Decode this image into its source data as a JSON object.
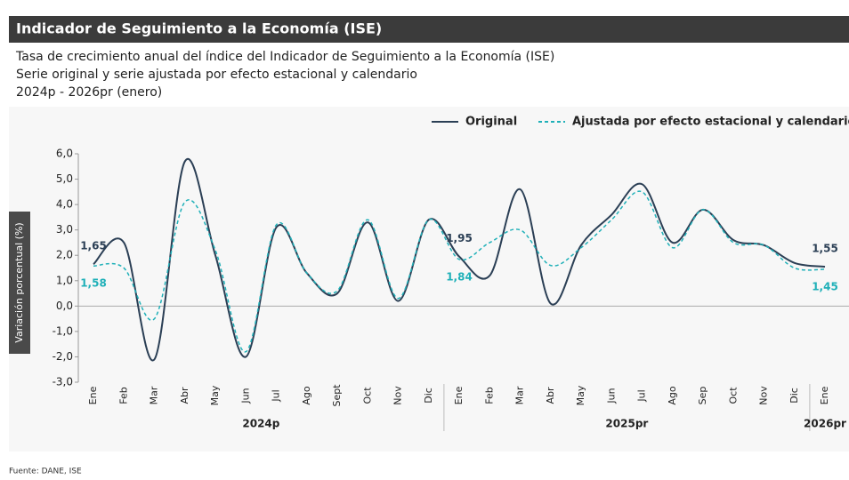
{
  "chart_data": {
    "type": "line",
    "title": "Indicador de Seguimiento a la Economía (ISE)",
    "subtitle": [
      "Tasa de crecimiento anual del índice del Indicador de Seguimiento a la Economía (ISE)",
      "Serie original y serie ajustada por efecto estacional y calendario",
      "2024p - 2026pr (enero)"
    ],
    "ylabel": "Variación porcentual (%)",
    "source": "Fuente: DANE, ISE",
    "categories": [
      "Ene",
      "Feb",
      "Mar",
      "Abr",
      "May",
      "Jun",
      "Jul",
      "Ago",
      "Sept",
      "Oct",
      "Nov",
      "Dic",
      "Ene",
      "Feb",
      "Mar",
      "Abr",
      "May",
      "Jun",
      "Jul",
      "Ago",
      "Sep",
      "Oct",
      "Nov",
      "Dic",
      "Ene"
    ],
    "x_groups": [
      {
        "label": "2024p",
        "span": 12
      },
      {
        "label": "2025pr",
        "span": 12
      },
      {
        "label": "2026pr",
        "span": 1
      }
    ],
    "series": [
      {
        "name": "Original",
        "color": "#2b3f55",
        "dash": false,
        "values": [
          1.65,
          2.5,
          -2.1,
          5.7,
          2.0,
          -2.0,
          3.1,
          1.3,
          0.5,
          3.3,
          0.2,
          3.4,
          1.95,
          1.2,
          4.6,
          0.1,
          2.4,
          3.6,
          4.8,
          2.5,
          3.8,
          2.6,
          2.4,
          1.7,
          1.55
        ],
        "value_labels": [
          "1,65",
          null,
          null,
          null,
          null,
          null,
          null,
          null,
          null,
          null,
          null,
          null,
          "1,95",
          null,
          null,
          null,
          null,
          null,
          null,
          null,
          null,
          null,
          null,
          null,
          "1,55"
        ]
      },
      {
        "name": "Ajustada por efecto estacional y calendario",
        "color": "#1fb0b8",
        "dash": true,
        "values": [
          1.58,
          1.5,
          -0.5,
          4.1,
          2.2,
          -1.8,
          3.2,
          1.3,
          0.6,
          3.4,
          0.3,
          3.4,
          1.84,
          2.5,
          3.0,
          1.6,
          2.3,
          3.4,
          4.5,
          2.3,
          3.8,
          2.5,
          2.4,
          1.5,
          1.45
        ],
        "value_labels": [
          "1,58",
          null,
          null,
          null,
          null,
          null,
          null,
          null,
          null,
          null,
          null,
          null,
          "1,84",
          null,
          null,
          null,
          null,
          null,
          null,
          null,
          null,
          null,
          null,
          null,
          "1,45"
        ]
      }
    ],
    "ylim": [
      -3,
      6
    ],
    "yticks": [
      {
        "value": 6,
        "label": "6,0"
      },
      {
        "value": 5,
        "label": "5,0"
      },
      {
        "value": 4,
        "label": "4,0"
      },
      {
        "value": 3,
        "label": "3,0"
      },
      {
        "value": 2,
        "label": "2,0"
      },
      {
        "value": 1,
        "label": "1,0"
      },
      {
        "value": 0,
        "label": "0,0"
      },
      {
        "value": -1,
        "label": "-1,0"
      },
      {
        "value": -2,
        "label": "-2,0"
      },
      {
        "value": -3,
        "label": "-3,0"
      }
    ],
    "legend": "top-right"
  }
}
